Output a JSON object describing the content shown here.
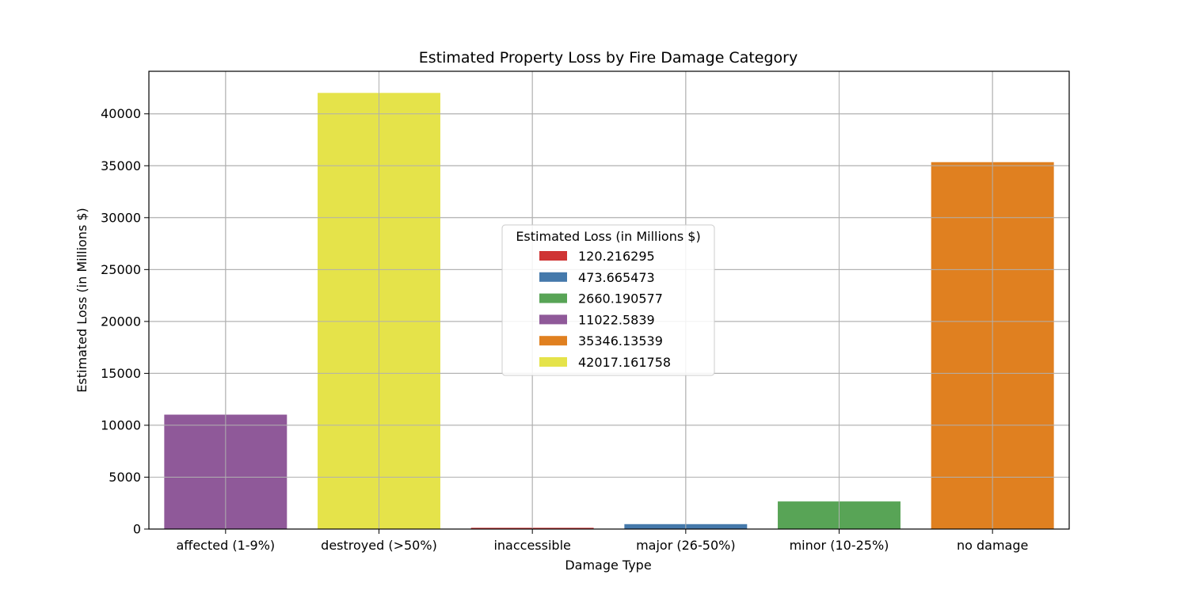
{
  "chart_data": {
    "type": "bar",
    "title": "Estimated Property Loss by Fire Damage Category",
    "xlabel": "Damage Type",
    "ylabel": "Estimated Loss (in Millions $)",
    "categories": [
      "affected (1-9%)",
      "destroyed (>50%)",
      "inaccessible",
      "major (26-50%)",
      "minor (10-25%)",
      "no damage"
    ],
    "values": [
      11022.5839,
      42017.161758,
      120.216295,
      473.665473,
      2660.190577,
      35346.13539
    ],
    "colors": [
      "#8f5999",
      "#e5e34a",
      "#cf3434",
      "#4579ab",
      "#58a456",
      "#e08020"
    ],
    "ylim": [
      0,
      44100
    ],
    "yticks": [
      0,
      5000,
      10000,
      15000,
      20000,
      25000,
      30000,
      35000,
      40000
    ],
    "grid": true,
    "legend": {
      "title": "Estimated Loss (in Millions $)",
      "placement": "center",
      "entries": [
        {
          "label": "120.216295",
          "color": "#cf3434"
        },
        {
          "label": "473.665473",
          "color": "#4579ab"
        },
        {
          "label": "2660.190577",
          "color": "#58a456"
        },
        {
          "label": "11022.5839",
          "color": "#8f5999"
        },
        {
          "label": "35346.13539",
          "color": "#e08020"
        },
        {
          "label": "42017.161758",
          "color": "#e5e34a"
        }
      ]
    }
  }
}
